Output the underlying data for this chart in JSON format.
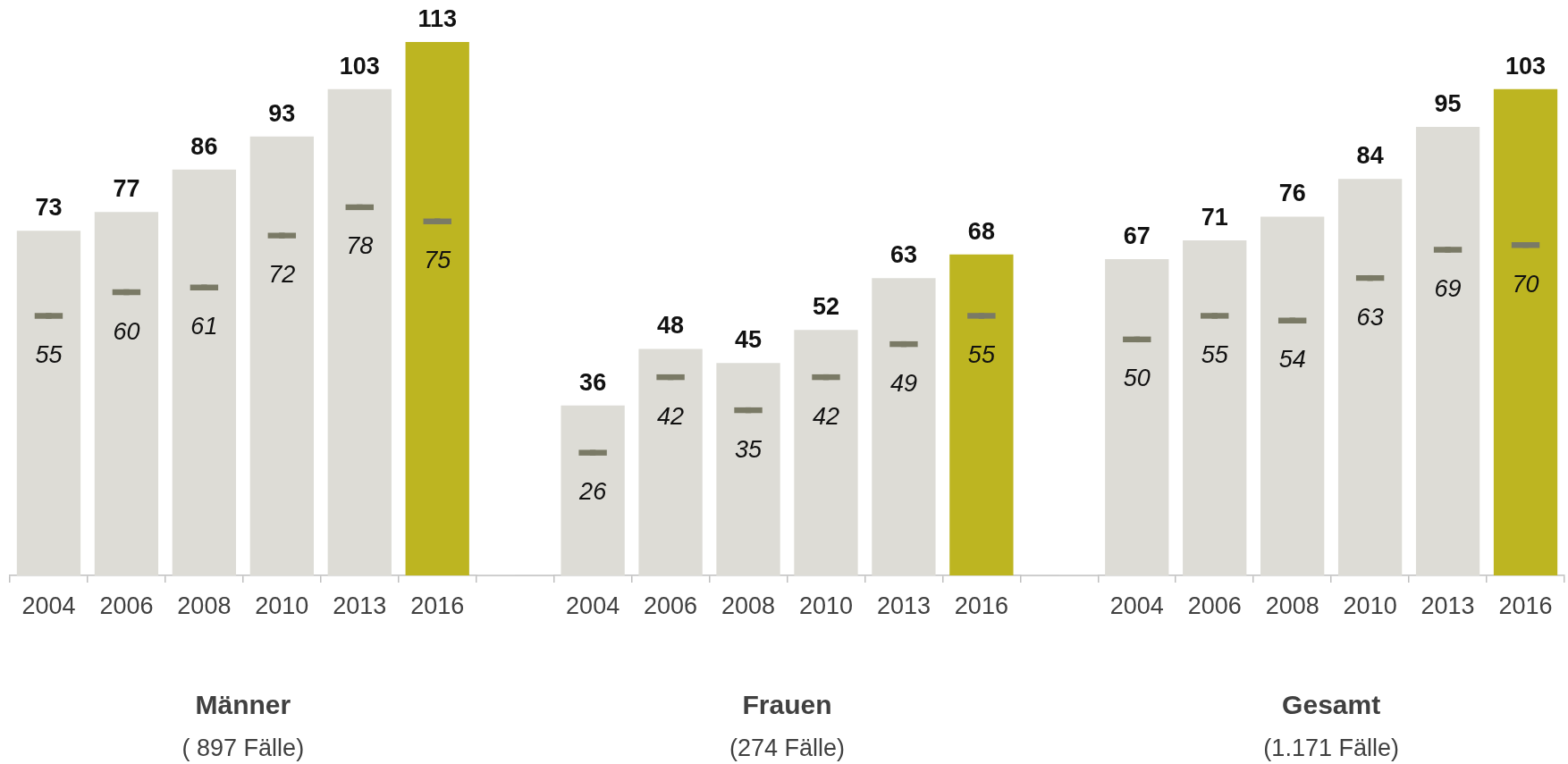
{
  "chart_data": [
    {
      "type": "bar",
      "xlabel": "Männer",
      "annotations": [
        "( 897 Fälle)"
      ],
      "categories": [
        "2004",
        "2006",
        "2008",
        "2010",
        "2013",
        "2016"
      ],
      "tick_labels": "x",
      "data_labels": true,
      "series": [
        {
          "colors": [
            "#dddcd6",
            "#dddcd6",
            "#dddcd6",
            "#dddcd6",
            "#dddcd6",
            "#bdb521"
          ],
          "values": [
            73,
            77,
            86,
            93,
            103,
            113
          ]
        },
        {
          "type": "scatter",
          "color": "#7a7a66",
          "values": [
            55,
            60,
            61,
            72,
            78,
            75
          ]
        }
      ]
    },
    {
      "type": "bar",
      "xlabel": "Frauen",
      "annotations": [
        "(274 Fälle)"
      ],
      "categories": [
        "2004",
        "2006",
        "2008",
        "2010",
        "2013",
        "2016"
      ],
      "tick_labels": "x",
      "data_labels": true,
      "series": [
        {
          "colors": [
            "#dddcd6",
            "#dddcd6",
            "#dddcd6",
            "#dddcd6",
            "#dddcd6",
            "#bdb521"
          ],
          "values": [
            36,
            48,
            45,
            52,
            63,
            68
          ]
        },
        {
          "type": "scatter",
          "color": "#7a7a66",
          "values": [
            26,
            42,
            35,
            42,
            49,
            55
          ]
        }
      ]
    },
    {
      "type": "bar",
      "xlabel": "Gesamt",
      "annotations": [
        "(1.171 Fälle)"
      ],
      "categories": [
        "2004",
        "2006",
        "2008",
        "2010",
        "2013",
        "2016"
      ],
      "tick_labels": "x",
      "data_labels": true,
      "series": [
        {
          "colors": [
            "#dddcd6",
            "#dddcd6",
            "#dddcd6",
            "#dddcd6",
            "#dddcd6",
            "#bdb521"
          ],
          "values": [
            67,
            71,
            76,
            84,
            95,
            103
          ]
        },
        {
          "type": "scatter",
          "color": "#7a7a66",
          "values": [
            50,
            55,
            54,
            63,
            69,
            70
          ]
        }
      ]
    }
  ]
}
